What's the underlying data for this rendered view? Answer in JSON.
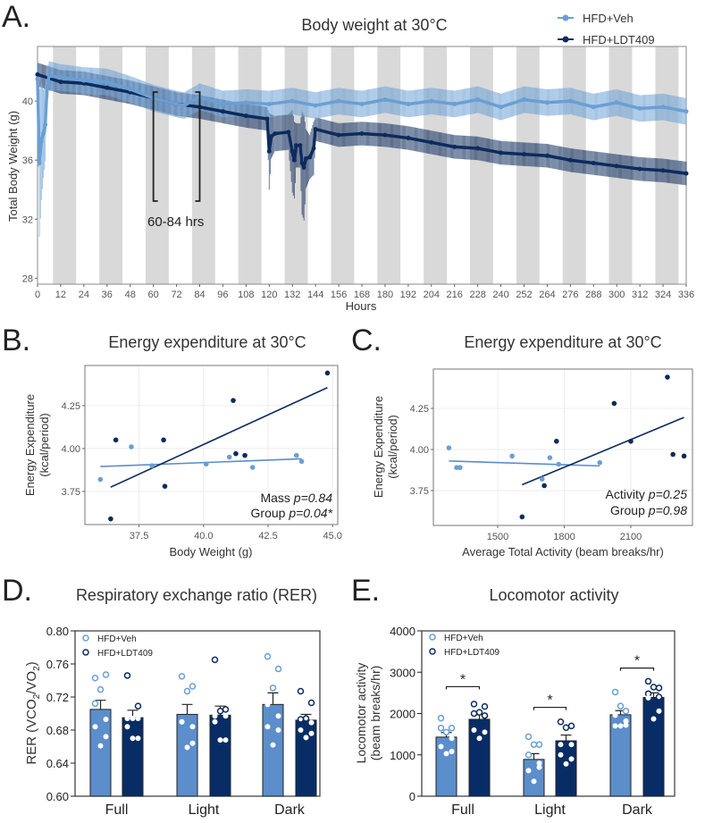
{
  "colors": {
    "veh": "#6a9fd4",
    "ldt": "#0d2b5c",
    "veh_bar": "#5b8ecb",
    "ldt_bar": "#082d66",
    "dark_phase": "#d9d9d9"
  },
  "panels": {
    "A": {
      "label": "A.",
      "bracket_label": "60-84 hrs",
      "legend": [
        "HFD+Veh",
        "HFD+LDT409"
      ]
    },
    "B": {
      "label": "B."
    },
    "C": {
      "label": "C."
    },
    "D": {
      "label": "D.",
      "legend": [
        "HFD+Veh",
        "HFD+LDT409"
      ]
    },
    "E": {
      "label": "E.",
      "legend": [
        "HFD+Veh",
        "HFD+LDT409"
      ]
    }
  },
  "chart_data": [
    {
      "type": "line",
      "title": "Body weight at 30°C",
      "xlabel": "Hours",
      "ylabel": "Total Body Weight (g)",
      "xlim": [
        0,
        336
      ],
      "ylim": [
        27.6,
        43.7
      ],
      "xticks": [
        0,
        12,
        24,
        36,
        48,
        60,
        72,
        84,
        96,
        108,
        120,
        132,
        144,
        156,
        168,
        180,
        192,
        204,
        216,
        228,
        240,
        252,
        264,
        276,
        288,
        300,
        312,
        324,
        336
      ],
      "yticks": [
        28,
        32,
        36,
        40
      ],
      "dark_phases_start": 8,
      "dark_phase_hours": 12,
      "cycle_hours": 24,
      "highlight_window_hours": [
        60,
        84
      ],
      "legend_position": "top-right",
      "series": [
        {
          "name": "HFD+Veh",
          "x": [
            0,
            1,
            2,
            3,
            4,
            5,
            6,
            12,
            24,
            36,
            48,
            60,
            72,
            76,
            84,
            96,
            108,
            120,
            132,
            144,
            156,
            168,
            180,
            192,
            204,
            216,
            228,
            240,
            252,
            264,
            276,
            288,
            300,
            312,
            324,
            336
          ],
          "y": [
            41.5,
            35.8,
            37.3,
            37.8,
            38.4,
            41.0,
            41.7,
            41.6,
            41.4,
            41.3,
            40.8,
            40.2,
            39.8,
            39.7,
            40.3,
            39.8,
            39.9,
            39.8,
            40.0,
            39.7,
            40.0,
            39.8,
            40.1,
            39.8,
            40.0,
            39.8,
            40.1,
            39.6,
            40.1,
            39.9,
            40.0,
            39.6,
            39.9,
            39.5,
            39.6,
            39.3
          ],
          "sem": [
            1.2,
            5.0,
            4.0,
            3.0,
            2.5,
            1.2,
            1.0,
            0.9,
            0.9,
            0.9,
            0.9,
            0.9,
            0.9,
            0.9,
            0.9,
            0.9,
            0.9,
            0.9,
            0.9,
            0.9,
            0.9,
            0.9,
            0.9,
            0.9,
            0.9,
            0.9,
            0.9,
            0.9,
            0.9,
            0.9,
            0.9,
            0.9,
            0.9,
            0.9,
            0.9,
            0.9
          ]
        },
        {
          "name": "HFD+LDT409",
          "x": [
            0,
            12,
            24,
            36,
            48,
            60,
            72,
            84,
            96,
            108,
            119,
            120,
            121,
            123,
            130,
            132,
            133,
            134,
            136,
            137,
            138,
            139,
            141,
            143,
            144,
            156,
            168,
            180,
            192,
            204,
            216,
            228,
            240,
            252,
            264,
            276,
            288,
            300,
            312,
            324,
            336
          ],
          "y": [
            41.8,
            41.3,
            41.2,
            40.9,
            40.6,
            40.2,
            39.8,
            39.6,
            39.3,
            39.0,
            38.8,
            36.6,
            37.6,
            37.8,
            37.9,
            36.6,
            36.0,
            37.0,
            37.0,
            35.8,
            35.5,
            36.1,
            36.2,
            36.8,
            38.1,
            37.7,
            37.8,
            37.7,
            37.5,
            37.2,
            36.9,
            36.8,
            36.5,
            36.4,
            36.3,
            36.0,
            35.8,
            35.6,
            35.4,
            35.3,
            35.1
          ],
          "sem": [
            0.8,
            0.8,
            0.8,
            0.8,
            0.8,
            0.8,
            0.8,
            0.8,
            0.8,
            0.8,
            0.8,
            2.6,
            1.5,
            1.2,
            1.2,
            2.8,
            2.6,
            1.5,
            1.5,
            3.5,
            3.6,
            2.0,
            1.5,
            1.8,
            0.8,
            0.8,
            0.8,
            0.8,
            0.8,
            0.8,
            0.8,
            0.8,
            0.8,
            0.8,
            0.8,
            0.8,
            0.8,
            0.8,
            0.8,
            0.8,
            0.8
          ]
        }
      ]
    },
    {
      "type": "scatter",
      "title": "Energy expenditure at 30°C",
      "xlabel": "Body Weight (g)",
      "ylabel": [
        "Energy Expenditure",
        "(kcal/period)"
      ],
      "xlim": [
        35.4,
        45.2
      ],
      "ylim": [
        3.557,
        4.484
      ],
      "xticks": [
        "37.5",
        "40.0",
        "42.5",
        "45.0"
      ],
      "yticks": [
        "3.75",
        "4.00",
        "4.25"
      ],
      "grid": true,
      "annotations": [
        {
          "label": "Mass ",
          "p": "p=0.84"
        },
        {
          "label": "Group ",
          "p": "p=0.04*"
        }
      ],
      "series": [
        {
          "group": "HFD+Veh",
          "x": [
            36.0,
            37.2,
            38.0,
            40.1,
            41.0,
            41.9,
            43.6,
            43.8
          ],
          "y": [
            3.82,
            4.01,
            3.9,
            3.91,
            3.95,
            3.89,
            3.96,
            3.925
          ],
          "fit": [
            [
              36.0,
              3.895
            ],
            [
              43.8,
              3.94
            ]
          ]
        },
        {
          "group": "HFD+LDT409",
          "x": [
            36.4,
            36.6,
            38.45,
            38.5,
            41.15,
            41.25,
            41.6,
            44.8
          ],
          "y": [
            3.59,
            4.05,
            4.05,
            3.78,
            4.28,
            3.97,
            3.96,
            4.44
          ],
          "fit": [
            [
              36.4,
              3.775
            ],
            [
              44.8,
              4.355
            ]
          ]
        }
      ]
    },
    {
      "type": "scatter",
      "title": "Energy expenditure at 30°C",
      "xlabel": "Average Total Activity (beam breaks/hr)",
      "ylabel": [
        "Energy Expenditure",
        "(kcal/period)"
      ],
      "xlim": [
        1210,
        2378
      ],
      "ylim": [
        3.538,
        4.489
      ],
      "xticks": [
        "1500",
        "1800",
        "2100"
      ],
      "yticks": [
        "3.75",
        "4.00",
        "4.25"
      ],
      "grid": true,
      "annotations": [
        {
          "label": "Activity ",
          "p": "p=0.25"
        },
        {
          "label": "Group ",
          "p": "p=0.98"
        }
      ],
      "series": [
        {
          "group": "HFD+Veh",
          "x": [
            1280,
            1315,
            1330,
            1565,
            1700,
            1735,
            1775,
            1960
          ],
          "y": [
            4.01,
            3.89,
            3.89,
            3.96,
            3.82,
            3.95,
            3.91,
            3.92
          ],
          "fit": [
            [
              1280,
              3.93
            ],
            [
              1960,
              3.9
            ]
          ]
        },
        {
          "group": "HFD+LDT409",
          "x": [
            1610,
            1710,
            1765,
            2025,
            2100,
            2265,
            2290,
            2340
          ],
          "y": [
            3.59,
            3.78,
            4.05,
            4.28,
            4.05,
            4.44,
            3.97,
            3.96
          ],
          "fit": [
            [
              1610,
              3.785
            ],
            [
              2340,
              4.195
            ]
          ]
        }
      ]
    },
    {
      "type": "bar",
      "title": "Respiratory exchange ratio (RER)",
      "ylabel": "RER (VCO2/VO2)",
      "ylabel_parts": [
        "RER (VCO",
        "2",
        "/VO",
        "2",
        ")"
      ],
      "categories": [
        "Full",
        "Light",
        "Dark"
      ],
      "ylim": [
        0.6,
        0.8
      ],
      "yticks": [
        "0.60",
        "0.64",
        "0.68",
        "0.72",
        "0.76",
        "0.80"
      ],
      "legend_position": "top-left",
      "series": [
        {
          "name": "HFD+Veh",
          "values": [
            0.705,
            0.699,
            0.711
          ],
          "sem": [
            0.011,
            0.012,
            0.014
          ],
          "points": [
            [
              0.743,
              0.747,
              0.729,
              0.712,
              0.693,
              0.684,
              0.672,
              0.661
            ],
            [
              0.745,
              0.733,
              0.727,
              0.69,
              0.684,
              0.69,
              0.664,
              0.659
            ],
            [
              0.769,
              0.754,
              0.731,
              0.711,
              0.697,
              0.684,
              0.68,
              0.662
            ]
          ]
        },
        {
          "name": "HFD+LDT409",
          "values": [
            0.695,
            0.698,
            0.692
          ],
          "sem": [
            0.009,
            0.011,
            0.007
          ],
          "points": [
            [
              0.746,
              0.709,
              0.694,
              0.694,
              0.694,
              0.684,
              0.67,
              0.67
            ],
            [
              0.765,
              0.705,
              0.703,
              0.697,
              0.697,
              0.69,
              0.668,
              0.668
            ],
            [
              0.727,
              0.713,
              0.694,
              0.693,
              0.689,
              0.68,
              0.676,
              0.671
            ]
          ]
        }
      ]
    },
    {
      "type": "bar",
      "title": "Locomotor activity",
      "ylabel": [
        "Locomotor activity",
        "(beam breaks/hr)"
      ],
      "categories": [
        "Full",
        "Light",
        "Dark"
      ],
      "ylim": [
        0,
        4000
      ],
      "yticks": [
        "0",
        "1000",
        "2000",
        "3000",
        "4000"
      ],
      "legend_position": "top-left",
      "significance": [
        "*",
        "*",
        "*"
      ],
      "series": [
        {
          "name": "HFD+Veh",
          "values": [
            1430,
            890,
            1970
          ],
          "sem": [
            110,
            140,
            100
          ],
          "points": [
            [
              1890,
              1650,
              1550,
              1650,
              1400,
              1200,
              1080,
              1030
            ],
            [
              1440,
              1250,
              1250,
              1000,
              800,
              620,
              700,
              360
            ],
            [
              2520,
              2060,
              2180,
              1960,
              1820,
              1700,
              1720,
              1700
            ]
          ]
        },
        {
          "name": "HFD+LDT409",
          "values": [
            1860,
            1340,
            2390
          ],
          "sem": [
            110,
            140,
            110
          ],
          "points": [
            [
              2230,
              2170,
              2030,
              2000,
              1950,
              1600,
              1550,
              1400
            ],
            [
              1800,
              1700,
              1660,
              1250,
              1250,
              1000,
              900,
              780
            ],
            [
              2780,
              2620,
              2640,
              2480,
              2400,
              2380,
              2060,
              1870
            ]
          ]
        }
      ]
    }
  ]
}
